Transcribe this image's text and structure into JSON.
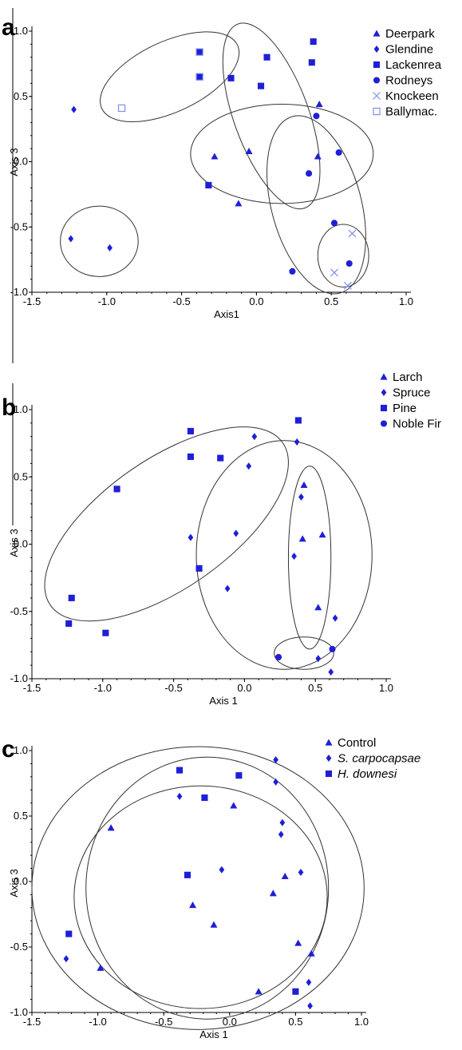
{
  "colors": {
    "marker": "#1f1fd6",
    "open_marker": "#7d8ef0",
    "ellipse": "#333333"
  },
  "chart_data": [
    {
      "panel": "a",
      "type": "scatter",
      "xlabel": "Axis1",
      "ylabel": "Axis 3",
      "xlim": [
        -1.5,
        1.0
      ],
      "ylim": [
        -1.0,
        1.0
      ],
      "xticks": [
        "-1.5",
        "-1.0",
        "-0.5",
        "0.0",
        "0.5",
        "1.0"
      ],
      "yticks": [
        "-1.0",
        "-0.5",
        "0.0",
        "0.5",
        "1.0"
      ],
      "series": [
        {
          "name": "Deerpark",
          "marker": "triangle",
          "points": [
            [
              -0.28,
              0.04
            ],
            [
              -0.05,
              0.08
            ],
            [
              -0.12,
              -0.32
            ],
            [
              0.42,
              0.44
            ],
            [
              0.41,
              0.04
            ]
          ]
        },
        {
          "name": "Glendine",
          "marker": "diamond",
          "points": [
            [
              -1.22,
              0.4
            ],
            [
              -1.24,
              -0.59
            ],
            [
              -0.98,
              -0.66
            ]
          ]
        },
        {
          "name": "Lackenrea",
          "marker": "square",
          "points": [
            [
              -0.38,
              0.65
            ],
            [
              -0.38,
              0.84
            ],
            [
              -0.17,
              0.64
            ],
            [
              0.03,
              0.58
            ],
            [
              0.07,
              0.8
            ],
            [
              0.37,
              0.76
            ],
            [
              0.38,
              0.92
            ],
            [
              -0.32,
              -0.18
            ]
          ]
        },
        {
          "name": "Rodneys",
          "marker": "circle",
          "points": [
            [
              0.4,
              0.35
            ],
            [
              0.55,
              0.07
            ],
            [
              0.35,
              -0.09
            ],
            [
              0.52,
              -0.47
            ],
            [
              0.62,
              -0.78
            ],
            [
              0.24,
              -0.84
            ]
          ]
        },
        {
          "name": "Knockeen",
          "marker": "cross",
          "points": [
            [
              0.64,
              -0.55
            ],
            [
              0.52,
              -0.85
            ],
            [
              0.61,
              -0.95
            ]
          ]
        },
        {
          "name": "Ballymac.",
          "marker": "open-square",
          "points": [
            [
              -0.9,
              0.41
            ],
            [
              -0.38,
              0.65
            ],
            [
              -0.38,
              0.84
            ]
          ]
        }
      ],
      "ellipses": [
        {
          "cx": -1.05,
          "cy": -0.61,
          "rx": 0.26,
          "ry": 0.27,
          "rot": 0
        },
        {
          "cx": -0.58,
          "cy": 0.65,
          "rx": 0.5,
          "ry": 0.27,
          "rot": 25
        },
        {
          "cx": 0.1,
          "cy": 0.35,
          "rx": 0.25,
          "ry": 0.75,
          "rot": 20
        },
        {
          "cx": 0.17,
          "cy": 0.06,
          "rx": 0.61,
          "ry": 0.38,
          "rot": 0
        },
        {
          "cx": 0.4,
          "cy": -0.33,
          "rx": 0.3,
          "ry": 0.7,
          "rot": 15
        },
        {
          "cx": 0.58,
          "cy": -0.72,
          "rx": 0.17,
          "ry": 0.24,
          "rot": 0
        }
      ]
    },
    {
      "panel": "b",
      "type": "scatter",
      "xlabel": "Axis 1",
      "ylabel": "Axis 3",
      "xlim": [
        -1.5,
        1.0
      ],
      "ylim": [
        -1.0,
        1.0
      ],
      "xticks": [
        "-1.5",
        "-1.0",
        "-0.5",
        "0.0",
        "0.5",
        "1.0"
      ],
      "yticks": [
        "-1.0",
        "-0.5",
        "0.0",
        "0.5",
        "1.0"
      ],
      "series": [
        {
          "name": "Larch",
          "marker": "triangle",
          "points": [
            [
              0.42,
              0.44
            ],
            [
              0.41,
              0.04
            ],
            [
              0.55,
              0.07
            ],
            [
              0.52,
              -0.47
            ]
          ]
        },
        {
          "name": "Spruce",
          "marker": "diamond",
          "points": [
            [
              -0.38,
              0.05
            ],
            [
              -0.06,
              0.08
            ],
            [
              -0.12,
              -0.33
            ],
            [
              0.03,
              0.58
            ],
            [
              0.07,
              0.8
            ],
            [
              0.37,
              0.76
            ],
            [
              0.4,
              0.35
            ],
            [
              0.35,
              -0.09
            ],
            [
              0.64,
              -0.55
            ],
            [
              0.52,
              -0.85
            ],
            [
              0.61,
              -0.95
            ]
          ]
        },
        {
          "name": "Pine",
          "marker": "square",
          "points": [
            [
              -0.9,
              0.41
            ],
            [
              -1.22,
              -0.4
            ],
            [
              -1.24,
              -0.59
            ],
            [
              -0.98,
              -0.66
            ],
            [
              -0.38,
              0.65
            ],
            [
              -0.38,
              0.84
            ],
            [
              -0.17,
              0.64
            ],
            [
              0.38,
              0.92
            ],
            [
              -0.32,
              -0.18
            ]
          ]
        },
        {
          "name": "Noble Fir",
          "marker": "circle",
          "points": [
            [
              0.24,
              -0.84
            ],
            [
              0.62,
              -0.78
            ]
          ]
        }
      ],
      "ellipses": [
        {
          "cx": -0.55,
          "cy": 0.15,
          "rx": 1.0,
          "ry": 0.48,
          "rot": 35
        },
        {
          "cx": 0.28,
          "cy": -0.08,
          "rx": 0.62,
          "ry": 0.85,
          "rot": 0
        },
        {
          "cx": 0.46,
          "cy": -0.1,
          "rx": 0.15,
          "ry": 0.68,
          "rot": 0
        },
        {
          "cx": 0.42,
          "cy": -0.81,
          "rx": 0.21,
          "ry": 0.12,
          "rot": 0
        }
      ]
    },
    {
      "panel": "c",
      "type": "scatter",
      "xlabel": "Axis 1",
      "ylabel": "Axis 3",
      "xlim": [
        -1.5,
        1.0
      ],
      "ylim": [
        -1.0,
        1.0
      ],
      "xticks": [
        "-1.5",
        "-1.0",
        "-0.5",
        "0.0",
        "0.5",
        "1.0"
      ],
      "yticks": [
        "-1.0",
        "-0.5",
        "0.0",
        "0.5",
        "1.0"
      ],
      "series": [
        {
          "name": "Control",
          "marker": "triangle",
          "points": [
            [
              -0.9,
              0.41
            ],
            [
              0.03,
              0.58
            ],
            [
              -0.28,
              -0.18
            ],
            [
              -0.12,
              -0.33
            ],
            [
              0.42,
              0.04
            ],
            [
              0.33,
              -0.09
            ],
            [
              -0.98,
              -0.66
            ],
            [
              0.22,
              -0.84
            ],
            [
              0.52,
              -0.47
            ],
            [
              0.62,
              -0.55
            ]
          ]
        },
        {
          "name": "S. carpocapsae",
          "marker": "diamond",
          "points": [
            [
              -0.38,
              0.65
            ],
            [
              0.35,
              0.93
            ],
            [
              0.35,
              0.76
            ],
            [
              0.4,
              0.45
            ],
            [
              0.39,
              0.36
            ],
            [
              -0.06,
              0.09
            ],
            [
              0.54,
              0.07
            ],
            [
              -1.24,
              -0.59
            ],
            [
              0.6,
              -0.77
            ],
            [
              0.61,
              -0.95
            ]
          ]
        },
        {
          "name": "H. downesi",
          "marker": "square",
          "points": [
            [
              -0.38,
              0.85
            ],
            [
              0.07,
              0.81
            ],
            [
              -0.19,
              0.64
            ],
            [
              -0.32,
              0.05
            ],
            [
              -1.22,
              -0.4
            ],
            [
              0.5,
              -0.84
            ]
          ]
        }
      ],
      "ellipses": [
        {
          "cx": -0.24,
          "cy": -0.05,
          "rx": 1.26,
          "ry": 1.08,
          "rot": 0
        },
        {
          "cx": -0.17,
          "cy": -0.05,
          "rx": 0.92,
          "ry": 1.0,
          "rot": 0
        },
        {
          "cx": -0.22,
          "cy": -0.12,
          "rx": 0.96,
          "ry": 0.85,
          "rot": 0
        }
      ]
    }
  ]
}
